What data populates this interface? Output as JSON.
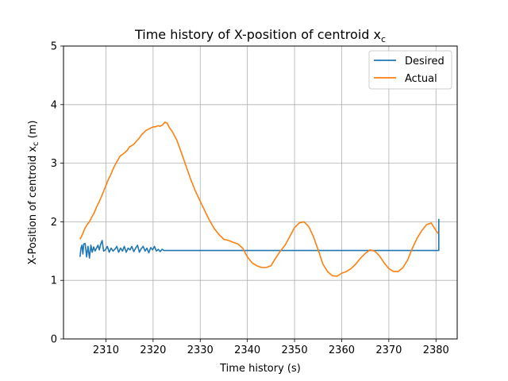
{
  "chart_data": {
    "type": "line",
    "title": "Time history of X-position of centroid x",
    "title_subscript": "c",
    "xlabel": "Time history (s)",
    "ylabel": "X-Position of centroid x",
    "ylabel_subscript": "c",
    "ylabel_unit": " (m)",
    "xlim": [
      2301,
      2384.5
    ],
    "ylim": [
      0,
      5
    ],
    "xticks": [
      2310,
      2320,
      2330,
      2340,
      2350,
      2360,
      2370,
      2380
    ],
    "yticks": [
      0,
      1,
      2,
      3,
      4,
      5
    ],
    "grid": true,
    "legend_position": "top-right",
    "series": [
      {
        "name": "Desired",
        "color": "#1f77b4",
        "x": [
          2304.5,
          2304.7,
          2304.9,
          2305.1,
          2305.3,
          2305.6,
          2305.9,
          2306.2,
          2306.5,
          2306.8,
          2307.1,
          2307.4,
          2307.7,
          2308.0,
          2308.3,
          2308.6,
          2308.9,
          2309.2,
          2309.5,
          2309.9,
          2310.3,
          2310.7,
          2311.1,
          2311.5,
          2311.9,
          2312.3,
          2312.7,
          2313.1,
          2313.5,
          2313.9,
          2314.3,
          2314.7,
          2315.1,
          2315.5,
          2315.9,
          2316.3,
          2316.7,
          2317.1,
          2317.5,
          2317.9,
          2318.3,
          2318.7,
          2319.1,
          2319.5,
          2319.9,
          2320.3,
          2320.7,
          2321.1,
          2321.5,
          2321.9,
          2322.3,
          2340.0,
          2360.0,
          2380.6,
          2380.6
        ],
        "values": [
          1.4,
          1.55,
          1.6,
          1.45,
          1.62,
          1.63,
          1.4,
          1.58,
          1.38,
          1.6,
          1.48,
          1.57,
          1.5,
          1.55,
          1.6,
          1.52,
          1.62,
          1.68,
          1.5,
          1.52,
          1.58,
          1.48,
          1.55,
          1.5,
          1.53,
          1.58,
          1.48,
          1.55,
          1.5,
          1.58,
          1.48,
          1.55,
          1.52,
          1.58,
          1.49,
          1.55,
          1.6,
          1.48,
          1.54,
          1.58,
          1.5,
          1.55,
          1.47,
          1.56,
          1.52,
          1.58,
          1.5,
          1.53,
          1.49,
          1.53,
          1.51,
          1.51,
          1.51,
          1.51,
          2.05
        ]
      },
      {
        "name": "Actual",
        "color": "#ff7f0e",
        "x": [
          2304.5,
          2305.0,
          2305.5,
          2306.0,
          2306.5,
          2307.0,
          2307.5,
          2308.0,
          2308.5,
          2309.0,
          2309.5,
          2310.0,
          2310.5,
          2311.0,
          2311.5,
          2312.0,
          2312.5,
          2313.0,
          2313.5,
          2314.0,
          2314.5,
          2315.0,
          2315.5,
          2316.0,
          2316.5,
          2317.0,
          2317.5,
          2318.0,
          2318.5,
          2319.0,
          2319.5,
          2320.0,
          2320.5,
          2321.0,
          2321.5,
          2322.0,
          2322.5,
          2323.0,
          2323.5,
          2324.0,
          2325.0,
          2326.0,
          2327.0,
          2328.0,
          2329.0,
          2330.0,
          2331.0,
          2332.0,
          2333.0,
          2334.0,
          2335.0,
          2336.0,
          2337.0,
          2338.0,
          2339.0,
          2340.0,
          2341.0,
          2342.0,
          2343.0,
          2344.0,
          2345.0,
          2346.0,
          2347.0,
          2348.0,
          2349.0,
          2350.0,
          2351.0,
          2352.0,
          2353.0,
          2354.0,
          2355.0,
          2356.0,
          2357.0,
          2358.0,
          2359.0,
          2360.0,
          2361.0,
          2362.0,
          2363.0,
          2364.0,
          2365.0,
          2366.0,
          2367.0,
          2368.0,
          2369.0,
          2370.0,
          2371.0,
          2372.0,
          2373.0,
          2374.0,
          2375.0,
          2376.0,
          2377.0,
          2378.0,
          2379.0,
          2380.0,
          2380.5
        ],
        "values": [
          1.7,
          1.78,
          1.88,
          1.95,
          2.0,
          2.08,
          2.15,
          2.25,
          2.33,
          2.42,
          2.52,
          2.62,
          2.72,
          2.8,
          2.9,
          2.98,
          3.05,
          3.12,
          3.15,
          3.18,
          3.22,
          3.28,
          3.3,
          3.33,
          3.38,
          3.42,
          3.48,
          3.52,
          3.56,
          3.58,
          3.6,
          3.62,
          3.62,
          3.64,
          3.63,
          3.65,
          3.7,
          3.68,
          3.6,
          3.55,
          3.4,
          3.18,
          2.95,
          2.72,
          2.52,
          2.35,
          2.18,
          2.02,
          1.88,
          1.78,
          1.7,
          1.68,
          1.65,
          1.62,
          1.55,
          1.4,
          1.3,
          1.25,
          1.22,
          1.22,
          1.25,
          1.38,
          1.5,
          1.6,
          1.75,
          1.9,
          1.98,
          2.0,
          1.92,
          1.75,
          1.52,
          1.28,
          1.15,
          1.08,
          1.07,
          1.12,
          1.15,
          1.2,
          1.28,
          1.38,
          1.46,
          1.52,
          1.5,
          1.42,
          1.3,
          1.2,
          1.15,
          1.15,
          1.22,
          1.35,
          1.55,
          1.72,
          1.85,
          1.95,
          1.98,
          1.85,
          1.8
        ]
      }
    ]
  }
}
